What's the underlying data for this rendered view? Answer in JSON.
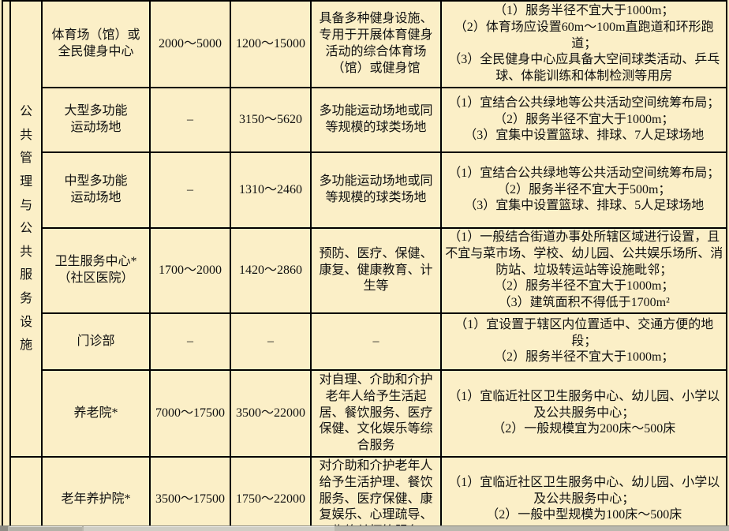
{
  "colors": {
    "background": "#FBEFC7",
    "grid_line": "#000000",
    "bottom_strip": "#B9B8AE"
  },
  "category": {
    "label": "公共管理与公共服务设施"
  },
  "rows": [
    {
      "name": "体育场（馆）或\n全民健身中心",
      "range1": "2000～5000",
      "range2": "1200～15000",
      "description": "具备多种健身设施、专用于开展体育健身活动的综合体育场（馆）或健身馆",
      "requirements": "（1）服务半径不宜大于1000m；\n（2）体育场应设置60m～100m直跑道和环形跑道；\n（3）全民健身中心应具备大空间球类活动、乒乓球、体能训练和体制检测等用房"
    },
    {
      "name": "大型多功能\n运动场地",
      "range1": "–",
      "range2": "3150～5620",
      "description": "多功能运动场地或同等规模的球类场地",
      "requirements": "（1）宜结合公共绿地等公共活动空间统筹布局；\n（2）服务半径不宜大于1000m；\n（3）宜集中设置篮球、排球、7人足球场地"
    },
    {
      "name": "中型多功能\n运动场地",
      "range1": "–",
      "range2": "1310～2460",
      "description": "多功能运动场地或同等规模的球类场地",
      "requirements": "（1）宜结合公共绿地等公共活动空间统筹布局；\n（2）服务半径不宜大于500m；\n（3）宜集中设置篮球、排球、5人足球场地"
    },
    {
      "name": "卫生服务中心*\n（社区医院）",
      "range1": "1700～2000",
      "range2": "1420～2860",
      "description": "预防、医疗、保健、康复、健康教育、计生等",
      "requirements": "（1）一般结合街道办事处所辖区域进行设置，且不宜与菜市场、学校、幼儿园、公共娱乐场所、消防站、垃圾转运站等设施毗邻；\n（2）服务半径不宜大于1000m；\n（3）建筑面积不得低于1700m²"
    },
    {
      "name": "门诊部",
      "range1": "–",
      "range2": "–",
      "description": "–",
      "requirements": "（1）宜设置于辖区内位置适中、交通方便的地段；\n（2）服务半径不宜大于1000m；"
    },
    {
      "name": "养老院*",
      "range1": "7000～17500",
      "range2": "3500～22000",
      "description": "对自理、介助和介护老年人给予生活起居、餐饮服务、医疗保健、文化娱乐等综合服务",
      "requirements": "（1）宜临近社区卫生服务中心、幼儿园、小学以及公共服务中心；\n（2）一般规模宜为200床～500床"
    },
    {
      "name": "老年养护院*",
      "range1": "3500～17500",
      "range2": "1750～22000",
      "description": "对介助和介护老年人给予生活护理、餐饮服务、医疗保健、康复娱乐、心理疏导、临终关怀等服务",
      "requirements": "（1）宜临近社区卫生服务中心、幼儿园、小学以及公共服务中心；\n（2）一般中型规模为100床～500床"
    }
  ]
}
